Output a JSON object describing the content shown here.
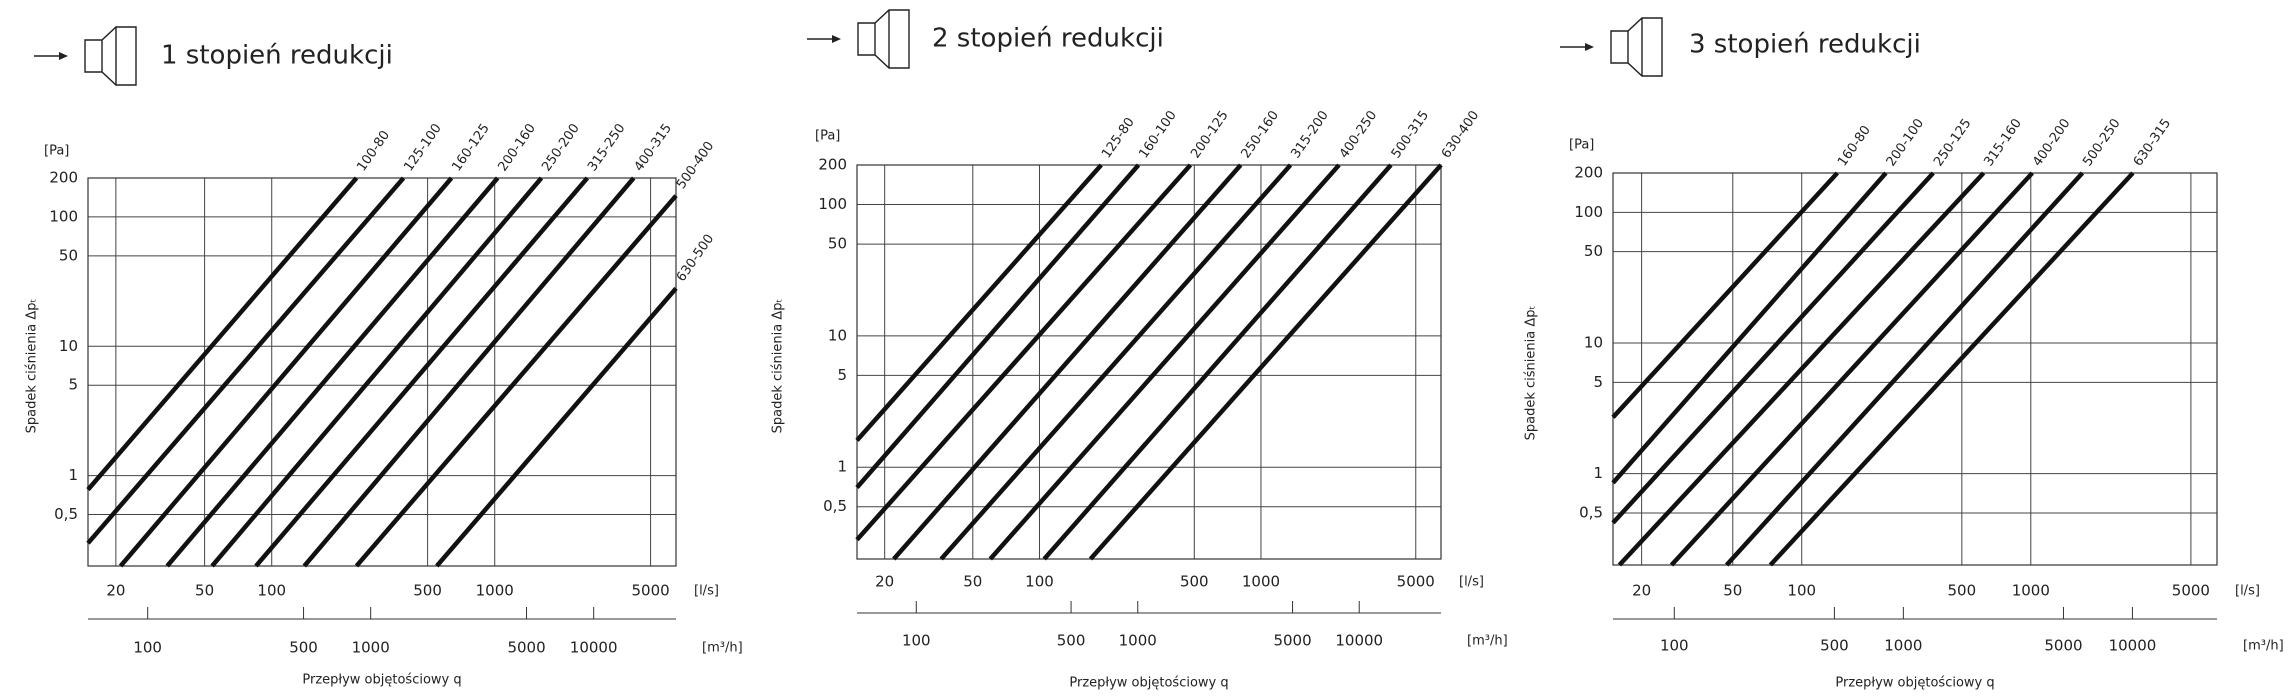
{
  "chart_data": [
    {
      "type": "line",
      "title": "1 stopień redukcji",
      "y_unit": "[Pa]",
      "y_label": "Spadek ciśnienia Δpₜ",
      "x_unit": "[l/s]",
      "x2_unit": "[m³/h]",
      "x_label": "Przepływ objętościowy q",
      "log_x": true,
      "log_y": true,
      "grid": true,
      "xlim": [
        15,
        6500
      ],
      "ylim": [
        0.2,
        200
      ],
      "x2lim": [
        54,
        23400
      ],
      "xticks": [
        20,
        50,
        100,
        500,
        1000,
        5000
      ],
      "yticks": [
        200,
        100,
        50,
        10,
        5,
        1,
        {
          "value": 0.5,
          "label": "0,5"
        }
      ],
      "x2ticks": [
        100,
        500,
        1000,
        5000,
        10000
      ],
      "series": [
        {
          "name": "100-80",
          "color": "#111111",
          "x": [
            15,
            240
          ],
          "values": [
            0.78,
            200
          ]
        },
        {
          "name": "125-100",
          "color": "#111111",
          "x": [
            15,
            390
          ],
          "values": [
            0.3,
            200
          ]
        },
        {
          "name": "160-125",
          "color": "#111111",
          "x": [
            21,
            640
          ],
          "values": [
            0.2,
            200
          ]
        },
        {
          "name": "200-160",
          "color": "#111111",
          "x": [
            34,
            1030
          ],
          "values": [
            0.2,
            200
          ]
        },
        {
          "name": "250-200",
          "color": "#111111",
          "x": [
            54,
            1620
          ],
          "values": [
            0.2,
            200
          ]
        },
        {
          "name": "315-250",
          "color": "#111111",
          "x": [
            85,
            2600
          ],
          "values": [
            0.2,
            200
          ]
        },
        {
          "name": "400-315",
          "color": "#111111",
          "x": [
            140,
            4200
          ],
          "values": [
            0.2,
            200
          ]
        },
        {
          "name": "500-400",
          "color": "#111111",
          "x": [
            240,
            6500
          ],
          "values": [
            0.2,
            146
          ]
        },
        {
          "name": "630-500",
          "color": "#111111",
          "x": [
            550,
            6500
          ],
          "values": [
            0.2,
            28
          ]
        }
      ]
    },
    {
      "type": "line",
      "title": "2 stopień redukcji",
      "y_unit": "[Pa]",
      "y_label": "Spadek ciśnienia Δpₜ",
      "x_unit": "[l/s]",
      "x2_unit": "[m³/h]",
      "x_label": "Przepływ objętościowy q",
      "log_x": true,
      "log_y": true,
      "grid": true,
      "xlim": [
        15,
        6500
      ],
      "ylim": [
        0.2,
        200
      ],
      "x2lim": [
        54,
        23400
      ],
      "xticks": [
        20,
        50,
        100,
        500,
        1000,
        5000
      ],
      "yticks": [
        200,
        100,
        50,
        10,
        5,
        1,
        {
          "value": 0.5,
          "label": "0,5"
        }
      ],
      "x2ticks": [
        100,
        500,
        1000,
        5000,
        10000
      ],
      "series": [
        {
          "name": "125-80",
          "color": "#111111",
          "x": [
            15,
            190
          ],
          "values": [
            1.6,
            200
          ]
        },
        {
          "name": "160-100",
          "color": "#111111",
          "x": [
            15,
            280
          ],
          "values": [
            0.7,
            200
          ]
        },
        {
          "name": "200-125",
          "color": "#111111",
          "x": [
            15,
            480
          ],
          "values": [
            0.28,
            200
          ]
        },
        {
          "name": "250-160",
          "color": "#111111",
          "x": [
            22,
            810
          ],
          "values": [
            0.2,
            200
          ]
        },
        {
          "name": "315-200",
          "color": "#111111",
          "x": [
            36,
            1360
          ],
          "values": [
            0.2,
            200
          ]
        },
        {
          "name": "400-250",
          "color": "#111111",
          "x": [
            60,
            2250
          ],
          "values": [
            0.2,
            200
          ]
        },
        {
          "name": "500-315",
          "color": "#111111",
          "x": [
            105,
            3860
          ],
          "values": [
            0.2,
            200
          ]
        },
        {
          "name": "630-400",
          "color": "#111111",
          "x": [
            170,
            6500
          ],
          "values": [
            0.2,
            200
          ]
        }
      ]
    },
    {
      "type": "line",
      "title": "3 stopień redukcji",
      "y_unit": "[Pa]",
      "y_label": "Spadek ciśnienia Δpₜ",
      "x_unit": "[l/s]",
      "x2_unit": "[m³/h]",
      "x_label": "Przepływ objętościowy q",
      "log_x": true,
      "log_y": true,
      "grid": true,
      "xlim": [
        15,
        6500
      ],
      "ylim": [
        0.2,
        200
      ],
      "x2lim": [
        54,
        23400
      ],
      "xticks": [
        20,
        50,
        100,
        500,
        1000,
        5000
      ],
      "yticks": [
        200,
        100,
        50,
        10,
        5,
        1,
        {
          "value": 0.5,
          "label": "0,5"
        }
      ],
      "x2ticks": [
        100,
        500,
        1000,
        5000,
        10000
      ],
      "series": [
        {
          "name": "160-80",
          "color": "#111111",
          "x": [
            15,
            143
          ],
          "values": [
            2.7,
            200
          ]
        },
        {
          "name": "200-100",
          "color": "#111111",
          "x": [
            15,
            233
          ],
          "values": [
            0.85,
            200
          ]
        },
        {
          "name": "250-125",
          "color": "#111111",
          "x": [
            15,
            375
          ],
          "values": [
            0.42,
            200
          ]
        },
        {
          "name": "315-160",
          "color": "#111111",
          "x": [
            16,
            622
          ],
          "values": [
            0.2,
            200
          ]
        },
        {
          "name": "400-200",
          "color": "#111111",
          "x": [
            27,
            1015
          ],
          "values": [
            0.2,
            200
          ]
        },
        {
          "name": "500-250",
          "color": "#111111",
          "x": [
            47,
            1680
          ],
          "values": [
            0.2,
            200
          ]
        },
        {
          "name": "630-315",
          "color": "#111111",
          "x": [
            73,
            2790
          ],
          "values": [
            0.2,
            200
          ]
        }
      ]
    }
  ]
}
